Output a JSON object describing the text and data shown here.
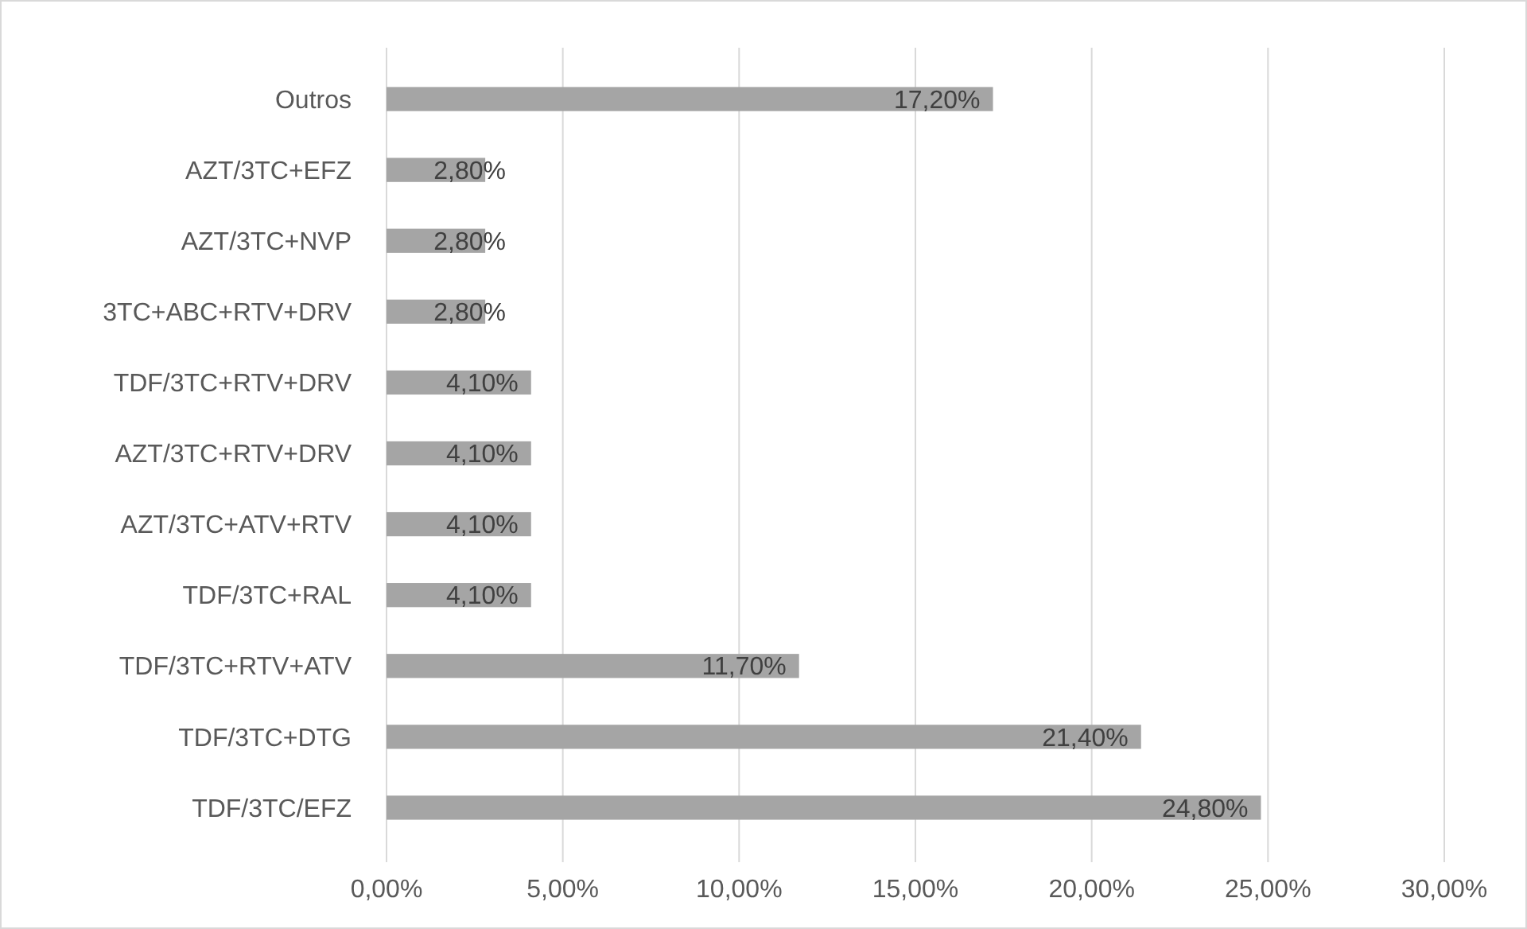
{
  "chart_data": {
    "type": "bar",
    "orientation": "horizontal",
    "categories": [
      "Outros",
      "AZT/3TC+EFZ",
      "AZT/3TC+NVP",
      "3TC+ABC+RTV+DRV",
      "TDF/3TC+RTV+DRV",
      "AZT/3TC+RTV+DRV",
      "AZT/3TC+ATV+RTV",
      "TDF/3TC+RAL",
      "TDF/3TC+RTV+ATV",
      "TDF/3TC+DTG",
      "TDF/3TC/EFZ"
    ],
    "values": [
      17.2,
      2.8,
      2.8,
      2.8,
      4.1,
      4.1,
      4.1,
      4.1,
      11.7,
      21.4,
      24.8
    ],
    "value_labels": [
      "17,20%",
      "2,80%",
      "2,80%",
      "2,80%",
      "4,10%",
      "4,10%",
      "4,10%",
      "4,10%",
      "11,70%",
      "21,40%",
      "24,80%"
    ],
    "color": "#a5a5a5",
    "xlim": [
      0,
      30
    ],
    "xticks": [
      {
        "value": 0,
        "label": "0,00%"
      },
      {
        "value": 5,
        "label": "5,00%"
      },
      {
        "value": 10,
        "label": "10,00%"
      },
      {
        "value": 15,
        "label": "15,00%"
      },
      {
        "value": 20,
        "label": "20,00%"
      },
      {
        "value": 25,
        "label": "25,00%"
      },
      {
        "value": 30,
        "label": "30,00%"
      }
    ],
    "grid": "x"
  }
}
